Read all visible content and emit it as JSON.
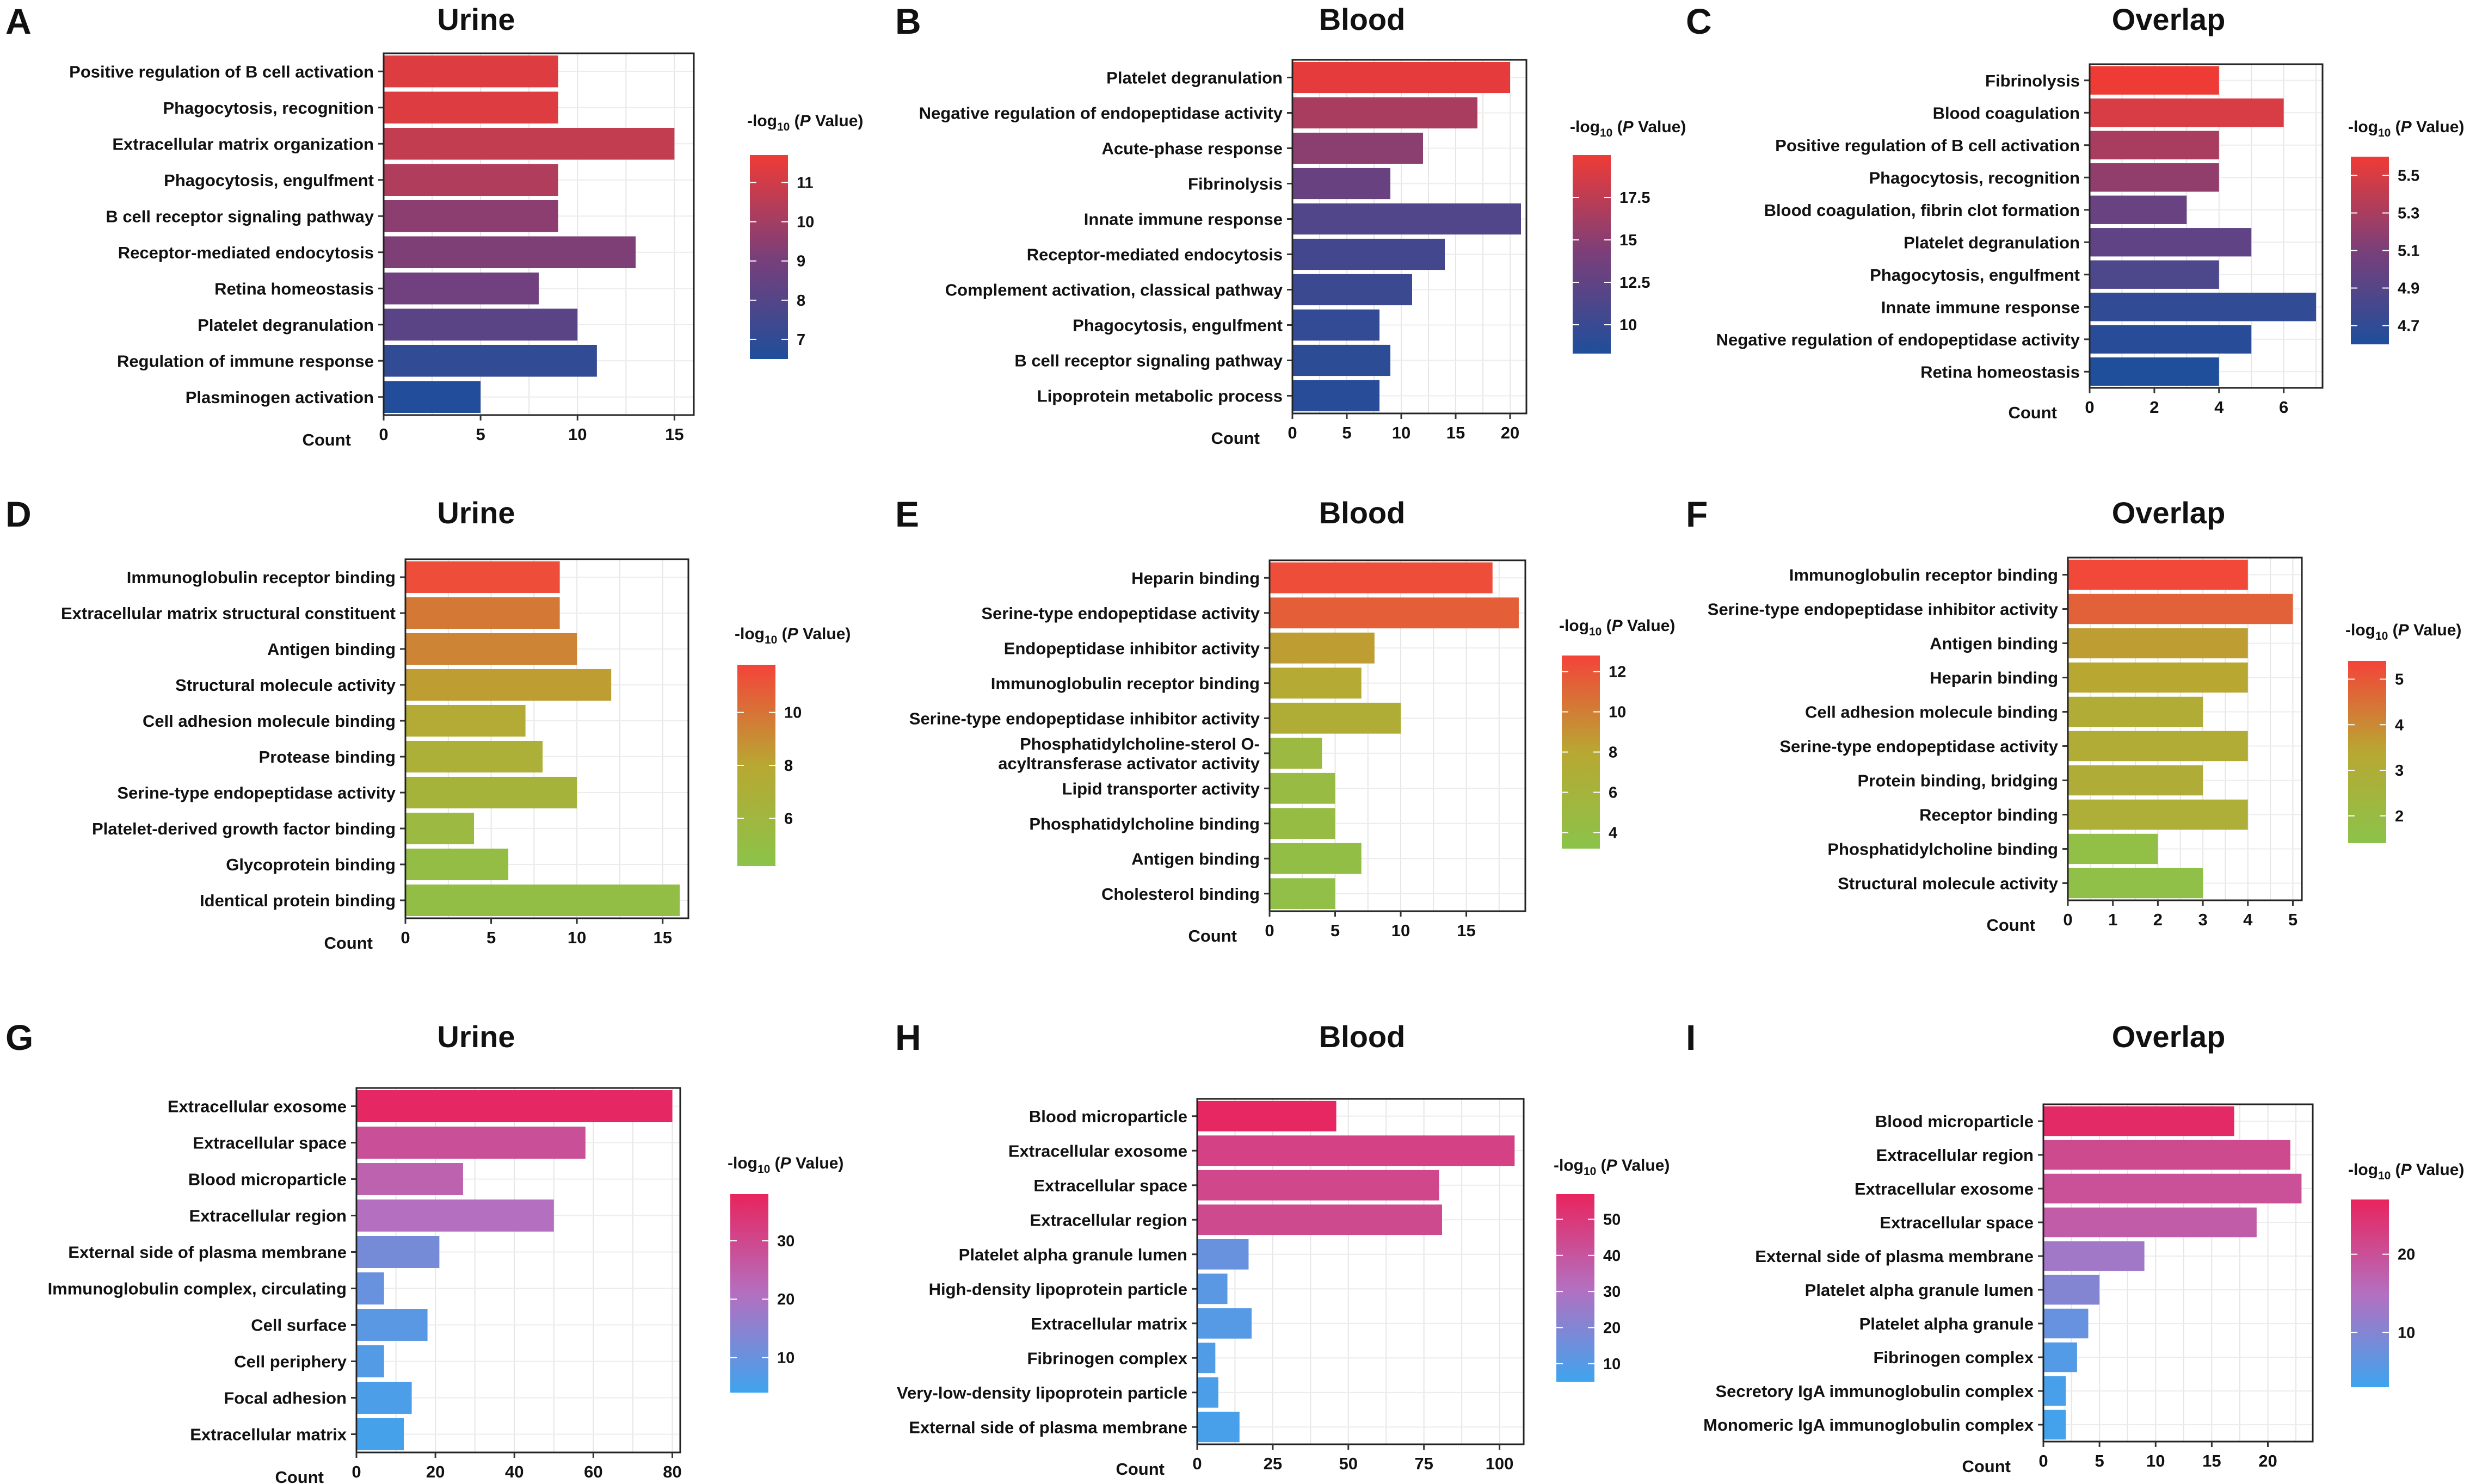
{
  "chart_data": [
    {
      "letter": "A",
      "type": "bar",
      "orientation": "horizontal",
      "title": "Urine",
      "categories": [
        "Positive regulation of B cell activation",
        "Phagocytosis, recognition",
        "Extracellular matrix organization",
        "Phagocytosis, engulfment",
        "B cell receptor signaling pathway",
        "Receptor-mediated endocytosis",
        "Retina homeostasis",
        "Platelet degranulation",
        "Regulation of immune response",
        "Plasminogen activation"
      ],
      "values": [
        9,
        9,
        15,
        9,
        9,
        13,
        8,
        10,
        11,
        5
      ],
      "color_values": [
        11.3,
        11.3,
        10.7,
        10.3,
        9.5,
        9.2,
        8.8,
        8.2,
        7.0,
        6.6
      ],
      "xlabel": "Count",
      "xlim": [
        0,
        16
      ],
      "xticks": [
        0,
        5,
        10,
        15
      ],
      "legend": {
        "title_prefix": "-log",
        "title_sub": "10",
        "title_suffix": " (P Value)",
        "range": [
          6.5,
          11.7
        ],
        "ticks": [
          7,
          8,
          9,
          10,
          11
        ]
      },
      "palette": [
        "#1f4e9b",
        "#7a3f7a",
        "#ef3b36"
      ]
    },
    {
      "letter": "B",
      "type": "bar",
      "orientation": "horizontal",
      "title": "Blood",
      "categories": [
        "Platelet degranulation",
        "Negative regulation of endopeptidase activity",
        "Acute-phase response",
        "Fibrinolysis",
        "Innate immune response",
        "Receptor-mediated endocytosis",
        "Complement activation, classical pathway",
        "Phagocytosis, engulfment",
        "B cell receptor signaling pathway",
        "Lipoprotein metabolic process"
      ],
      "values": [
        20,
        17,
        12,
        9,
        21,
        14,
        11,
        8,
        9,
        8
      ],
      "color_values": [
        19.5,
        16.5,
        15.0,
        13.0,
        11.5,
        10.6,
        10.1,
        9.6,
        9.2,
        8.9
      ],
      "xlabel": "Count",
      "xlim": [
        0,
        21.5
      ],
      "xticks": [
        0,
        5,
        10,
        15,
        20
      ],
      "legend": {
        "title_prefix": "-log",
        "title_sub": "10",
        "title_suffix": " (P Value)",
        "range": [
          8.3,
          20.0
        ],
        "ticks": [
          10.0,
          12.5,
          15.0,
          17.5
        ]
      },
      "palette": [
        "#1f4e9b",
        "#7a3f7a",
        "#ef3b36"
      ]
    },
    {
      "letter": "C",
      "type": "bar",
      "orientation": "horizontal",
      "title": "Overlap",
      "categories": [
        "Fibrinolysis",
        "Blood coagulation",
        "Positive regulation of B cell activation",
        "Phagocytosis, recognition",
        "Blood coagulation, fibrin clot formation",
        "Platelet degranulation",
        "Phagocytosis, engulfment",
        "Innate immune response",
        "Negative regulation of endopeptidase activity",
        "Retina homeostasis"
      ],
      "values": [
        4,
        6,
        4,
        4,
        3,
        5,
        4,
        7,
        5,
        4
      ],
      "color_values": [
        5.6,
        5.5,
        5.3,
        5.2,
        5.0,
        4.95,
        4.85,
        4.7,
        4.65,
        4.6
      ],
      "xlabel": "Count",
      "xlim": [
        0,
        7.2
      ],
      "xticks": [
        0,
        2,
        4,
        6
      ],
      "legend": {
        "title_prefix": "-log",
        "title_sub": "10",
        "title_suffix": " (P Value)",
        "range": [
          4.6,
          5.6
        ],
        "ticks": [
          4.7,
          4.9,
          5.1,
          5.3,
          5.5
        ]
      },
      "palette": [
        "#1f4e9b",
        "#7a3f7a",
        "#ef3b36"
      ]
    },
    {
      "letter": "D",
      "type": "bar",
      "orientation": "horizontal",
      "title": "Urine",
      "categories": [
        "Immunoglobulin receptor binding",
        "Extracellular matrix structural constituent",
        "Antigen binding",
        "Structural molecule activity",
        "Cell adhesion molecule binding",
        "Protease binding",
        "Serine-type endopeptidase activity",
        "Platelet-derived growth factor binding",
        "Glycoprotein binding",
        "Identical protein binding"
      ],
      "values": [
        9,
        9,
        10,
        12,
        7,
        8,
        10,
        4,
        6,
        16
      ],
      "color_values": [
        11.4,
        9.8,
        9.3,
        8.4,
        7.6,
        7.0,
        6.5,
        5.6,
        5.0,
        4.9
      ],
      "xlabel": "Count",
      "xlim": [
        0,
        16.5
      ],
      "xticks": [
        0,
        5,
        10,
        15
      ],
      "legend": {
        "title_prefix": "-log",
        "title_sub": "10",
        "title_suffix": " (P Value)",
        "range": [
          4.2,
          11.8
        ],
        "ticks": [
          6,
          8,
          10
        ]
      },
      "palette": [
        "#8bc34a",
        "#b8a832",
        "#f4433a"
      ]
    },
    {
      "letter": "E",
      "type": "bar",
      "orientation": "horizontal",
      "title": "Blood",
      "categories": [
        "Heparin binding",
        "Serine-type endopeptidase activity",
        "Endopeptidase inhibitor activity",
        "Immunoglobulin receptor binding",
        "Serine-type endopeptidase inhibitor activity",
        "Phosphatidylcholine-sterol O-\nacyltransferase activator activity",
        "Lipid transporter activity",
        "Phosphatidylcholine binding",
        "Antigen binding",
        "Cholesterol binding"
      ],
      "values": [
        17,
        19,
        8,
        7,
        10,
        4,
        5,
        5,
        7,
        5
      ],
      "color_values": [
        12.3,
        11.5,
        8.5,
        7.7,
        7.1,
        5.0,
        4.6,
        4.4,
        4.1,
        3.9
      ],
      "xlabel": "Count",
      "xlim": [
        0,
        19.5
      ],
      "xticks": [
        0,
        5,
        10,
        15
      ],
      "legend": {
        "title_prefix": "-log",
        "title_sub": "10",
        "title_suffix": " (P Value)",
        "range": [
          3.2,
          12.8
        ],
        "ticks": [
          4,
          6,
          8,
          10,
          12
        ]
      },
      "palette": [
        "#8bc34a",
        "#b8a832",
        "#f4433a"
      ]
    },
    {
      "letter": "F",
      "type": "bar",
      "orientation": "horizontal",
      "title": "Overlap",
      "categories": [
        "Immunoglobulin receptor binding",
        "Serine-type endopeptidase inhibitor activity",
        "Antigen binding",
        "Heparin binding",
        "Cell adhesion molecule binding",
        "Serine-type endopeptidase activity",
        "Protein binding, bridging",
        "Receptor binding",
        "Phosphatidylcholine binding",
        "Structural molecule activity"
      ],
      "values": [
        4,
        5,
        4,
        4,
        3,
        4,
        3,
        4,
        2,
        3
      ],
      "color_values": [
        5.3,
        4.8,
        3.6,
        3.4,
        3.1,
        3.1,
        3.0,
        2.9,
        1.7,
        1.6
      ],
      "xlabel": "Count",
      "xlim": [
        0,
        5.2
      ],
      "xticks": [
        0,
        1,
        2,
        3,
        4,
        5
      ],
      "legend": {
        "title_prefix": "-log",
        "title_sub": "10",
        "title_suffix": " (P Value)",
        "range": [
          1.4,
          5.4
        ],
        "ticks": [
          2,
          3,
          4,
          5
        ]
      },
      "palette": [
        "#8bc34a",
        "#b8a832",
        "#f4433a"
      ]
    },
    {
      "letter": "G",
      "type": "bar",
      "orientation": "horizontal",
      "title": "Urine",
      "categories": [
        "Extracellular exosome",
        "Extracellular space",
        "Blood microparticle",
        "Extracellular region",
        "External side of plasma membrane",
        "Immunoglobulin complex, circulating",
        "Cell surface",
        "Cell periphery",
        "Focal adhesion",
        "Extracellular matrix"
      ],
      "values": [
        80,
        58,
        27,
        50,
        21,
        7,
        18,
        7,
        14,
        12
      ],
      "color_values": [
        37,
        28,
        24,
        21,
        12,
        10,
        8,
        7,
        6,
        5
      ],
      "xlabel": "Count",
      "xlim": [
        0,
        82
      ],
      "xticks": [
        0,
        20,
        40,
        60,
        80
      ],
      "legend": {
        "title_prefix": "-log",
        "title_sub": "10",
        "title_suffix": " (P Value)",
        "range": [
          4,
          38
        ],
        "ticks": [
          10,
          20,
          30
        ]
      },
      "palette": [
        "#3fa4ee",
        "#b46fc0",
        "#e8245e"
      ]
    },
    {
      "letter": "H",
      "type": "bar",
      "orientation": "horizontal",
      "title": "Blood",
      "categories": [
        "Blood microparticle",
        "Extracellular exosome",
        "Extracellular space",
        "Extracellular region",
        "Platelet alpha granule lumen",
        "High-density lipoprotein particle",
        "Extracellular matrix",
        "Fibrinogen complex",
        "Very-low-density lipoprotein particle",
        "External side of plasma membrane"
      ],
      "values": [
        46,
        105,
        80,
        81,
        17,
        10,
        18,
        6,
        7,
        14
      ],
      "color_values": [
        56,
        47,
        45,
        44,
        14,
        11,
        10,
        9,
        8,
        7
      ],
      "xlabel": "Count",
      "xlim": [
        0,
        108
      ],
      "xticks": [
        0,
        25,
        50,
        75,
        100
      ],
      "legend": {
        "title_prefix": "-log",
        "title_sub": "10",
        "title_suffix": " (P Value)",
        "range": [
          5,
          57
        ],
        "ticks": [
          10,
          20,
          30,
          40,
          50
        ]
      },
      "palette": [
        "#3fa4ee",
        "#b46fc0",
        "#e8245e"
      ]
    },
    {
      "letter": "I",
      "type": "bar",
      "orientation": "horizontal",
      "title": "Overlap",
      "categories": [
        "Blood microparticle",
        "Extracellular region",
        "Extracellular exosome",
        "Extracellular space",
        "External side of plasma membrane",
        "Platelet alpha granule lumen",
        "Platelet alpha granule",
        "Fibrinogen complex",
        "Secretory IgA immunoglobulin complex",
        "Monomeric IgA immunoglobulin complex"
      ],
      "values": [
        17,
        22,
        23,
        19,
        9,
        5,
        4,
        3,
        2,
        2
      ],
      "color_values": [
        26,
        21,
        20,
        18,
        13,
        10,
        7,
        5,
        4,
        3.5
      ],
      "xlabel": "Count",
      "xlim": [
        0,
        24
      ],
      "xticks": [
        0,
        5,
        10,
        15,
        20
      ],
      "legend": {
        "title_prefix": "-log",
        "title_sub": "10",
        "title_suffix": " (P Value)",
        "range": [
          3,
          27
        ],
        "ticks": [
          10,
          20
        ]
      },
      "palette": [
        "#3fa4ee",
        "#b46fc0",
        "#e8245e"
      ]
    }
  ]
}
